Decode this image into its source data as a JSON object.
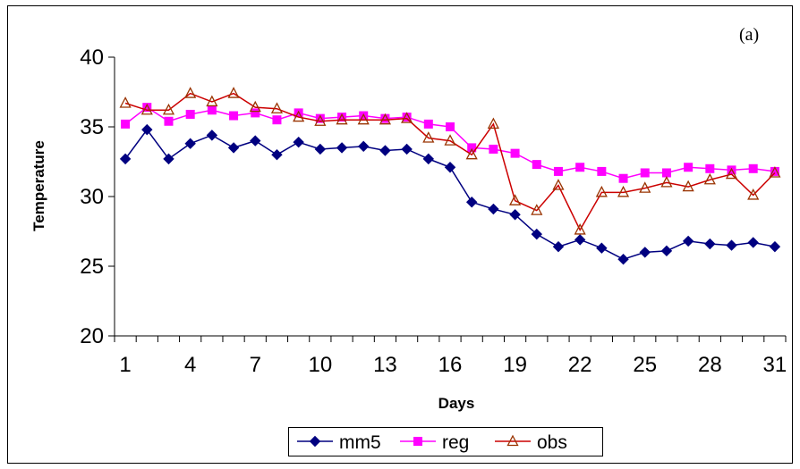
{
  "chart_data": {
    "type": "line",
    "title": "",
    "annotation": "(a)",
    "xlabel": "Days",
    "ylabel": "Temperature",
    "xlim": [
      1,
      31
    ],
    "ylim": [
      20,
      40
    ],
    "x_ticks": [
      1,
      4,
      7,
      10,
      13,
      16,
      19,
      22,
      25,
      28,
      31
    ],
    "y_ticks": [
      20,
      25,
      30,
      35,
      40
    ],
    "grid": false,
    "legend_position": "bottom",
    "x": [
      1,
      2,
      3,
      4,
      5,
      6,
      7,
      8,
      9,
      10,
      11,
      12,
      13,
      14,
      15,
      16,
      17,
      18,
      19,
      20,
      21,
      22,
      23,
      24,
      25,
      26,
      27,
      28,
      29,
      30,
      31
    ],
    "series": [
      {
        "name": "mm5",
        "color": "#000080",
        "marker": "diamond",
        "values": [
          32.7,
          34.8,
          32.7,
          33.8,
          34.4,
          33.5,
          34.0,
          33.0,
          33.9,
          33.4,
          33.5,
          33.6,
          33.3,
          33.4,
          32.7,
          32.1,
          29.6,
          29.1,
          28.7,
          27.3,
          26.4,
          26.9,
          26.3,
          25.5,
          26.0,
          26.1,
          26.8,
          26.6,
          26.5,
          26.7,
          26.4
        ]
      },
      {
        "name": "reg",
        "color": "#FF00FF",
        "marker": "square",
        "values": [
          35.2,
          36.4,
          35.4,
          35.9,
          36.2,
          35.8,
          36.0,
          35.5,
          36.0,
          35.6,
          35.7,
          35.8,
          35.6,
          35.7,
          35.2,
          35.0,
          33.5,
          33.4,
          33.1,
          32.3,
          31.8,
          32.1,
          31.8,
          31.3,
          31.7,
          31.7,
          32.1,
          32.0,
          31.9,
          32.0,
          31.8
        ]
      },
      {
        "name": "obs",
        "color": "#CC0000",
        "marker_color": "#993300",
        "marker": "triangle",
        "values": [
          36.7,
          36.2,
          36.2,
          37.4,
          36.8,
          37.4,
          36.4,
          36.3,
          35.7,
          35.4,
          35.5,
          35.5,
          35.5,
          35.6,
          34.2,
          34.0,
          33.0,
          35.2,
          29.7,
          29.0,
          30.8,
          27.6,
          30.3,
          30.3,
          30.6,
          31.0,
          30.7,
          31.2,
          31.6,
          30.1,
          31.7
        ]
      }
    ]
  }
}
